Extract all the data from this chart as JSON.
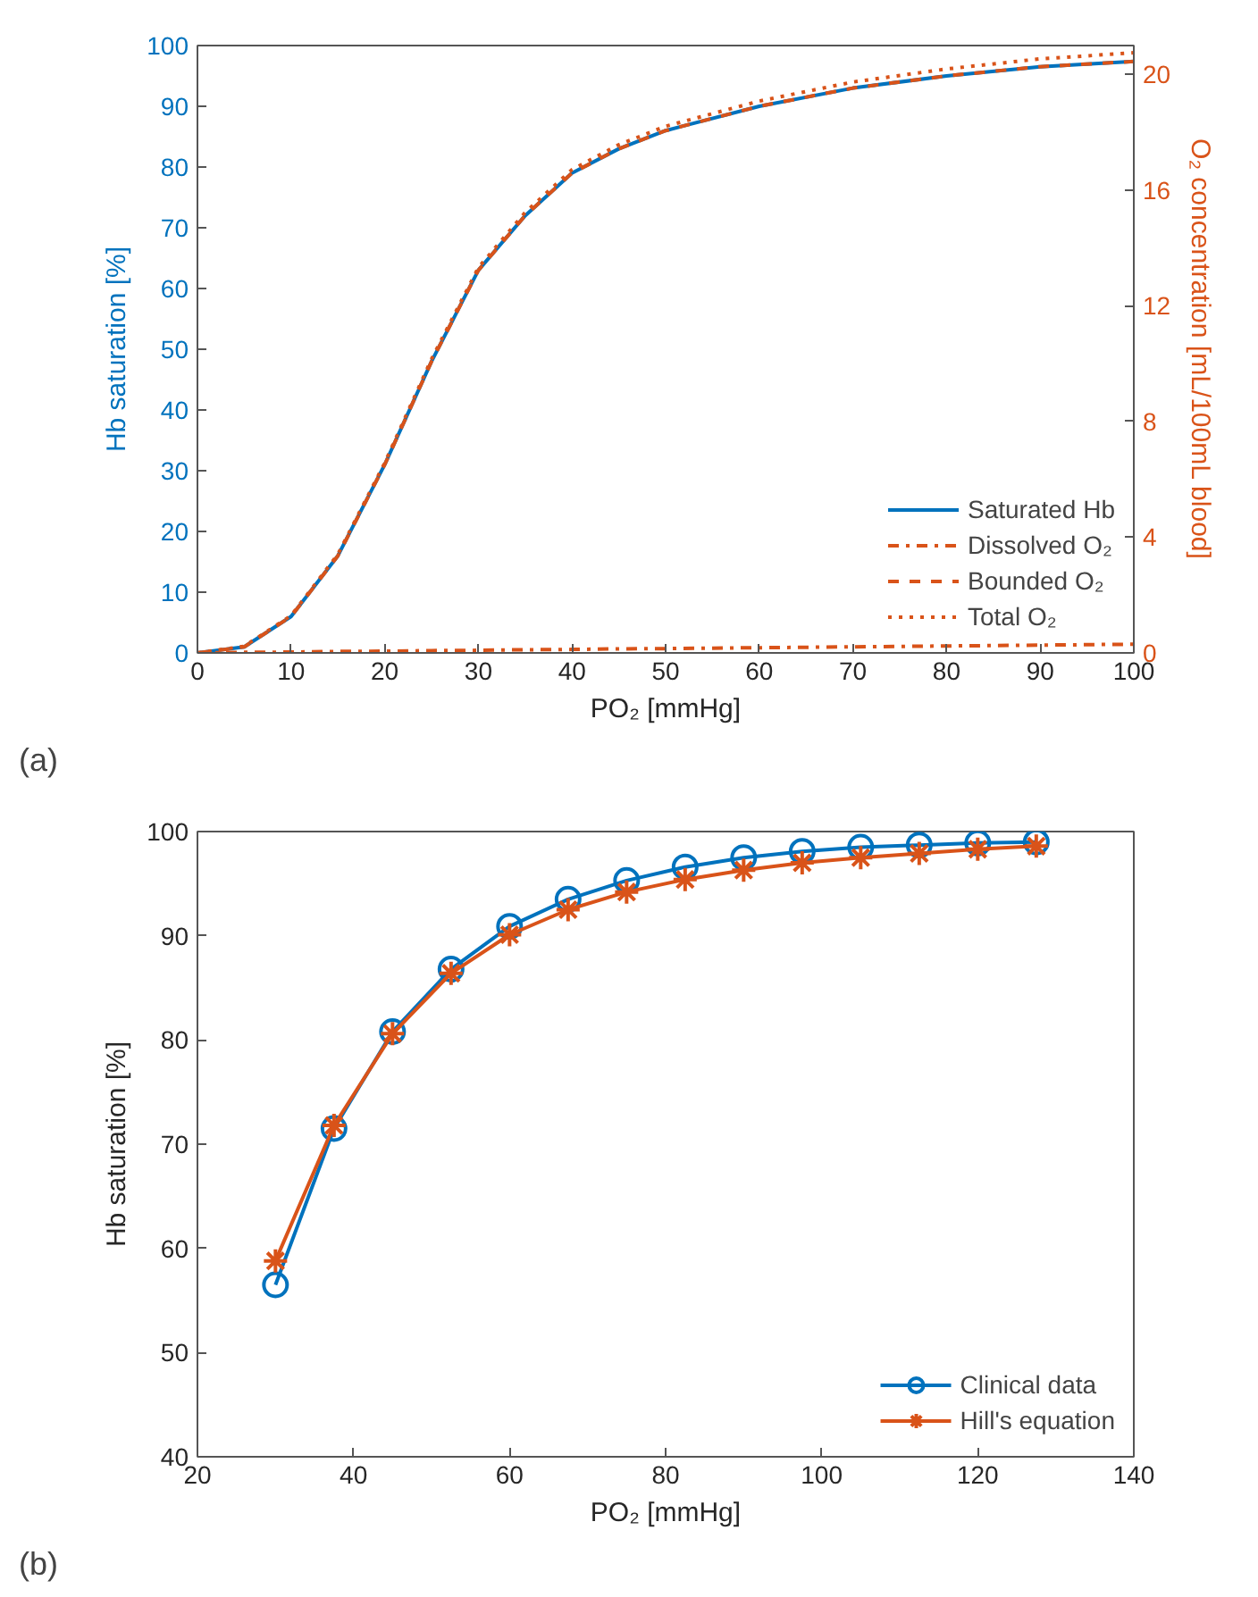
{
  "chart_data": [
    {
      "type": "line",
      "xlabel": "PO₂ [mmHg]",
      "ylabel": "Hb saturation [%]",
      "y2label": "O₂ concentration [mL/100mL blood]",
      "xlim": [
        0,
        100
      ],
      "xticks": [
        0,
        10,
        20,
        30,
        40,
        50,
        60,
        70,
        80,
        90,
        100
      ],
      "ylim": [
        0,
        100
      ],
      "yticks": [
        0,
        10,
        20,
        30,
        40,
        50,
        60,
        70,
        80,
        90,
        100
      ],
      "y2lim": [
        0,
        21
      ],
      "y2ticks": [
        0,
        4,
        8,
        12,
        16,
        20
      ],
      "legend": "bottom right",
      "grid": false,
      "annotations": [
        "(a)"
      ],
      "x": [
        0,
        5,
        10,
        15,
        20,
        25,
        30,
        35,
        40,
        45,
        50,
        60,
        70,
        80,
        90,
        100
      ],
      "series": [
        {
          "name": "Saturated Hb",
          "color": "#0072bd",
          "line_style": "solid",
          "values": [
            0,
            1,
            6,
            16,
            31,
            48,
            63,
            72,
            79,
            83,
            86,
            90,
            93,
            95,
            96.5,
            97.4
          ]
        },
        {
          "name": "Dissolved O₂",
          "color": "#d95319",
          "line_style": "dashdot",
          "axis": "y2",
          "values": [
            0,
            0.02,
            0.03,
            0.05,
            0.06,
            0.08,
            0.09,
            0.11,
            0.12,
            0.14,
            0.15,
            0.18,
            0.21,
            0.24,
            0.27,
            0.3
          ]
        },
        {
          "name": "Bounded O₂",
          "color": "#d95319",
          "line_style": "dashed",
          "axis": "y2",
          "values": [
            0,
            0.21,
            1.26,
            3.36,
            6.51,
            10.08,
            13.23,
            15.12,
            16.59,
            17.43,
            18.06,
            18.9,
            19.53,
            19.95,
            20.27,
            20.45
          ]
        },
        {
          "name": "Total O₂",
          "color": "#d95319",
          "line_style": "dotted",
          "axis": "y2",
          "values": [
            0,
            0.23,
            1.29,
            3.41,
            6.57,
            10.16,
            13.32,
            15.23,
            16.71,
            17.57,
            18.21,
            19.08,
            19.74,
            20.19,
            20.54,
            20.75
          ]
        }
      ]
    },
    {
      "type": "line",
      "xlabel": "PO₂ [mmHg]",
      "ylabel": "Hb saturation [%]",
      "xlim": [
        20,
        140
      ],
      "xticks": [
        20,
        40,
        60,
        80,
        100,
        120,
        140
      ],
      "ylim": [
        40,
        100
      ],
      "yticks": [
        40,
        50,
        60,
        70,
        80,
        90,
        100
      ],
      "legend": "bottom right",
      "grid": false,
      "annotations": [
        "(b)"
      ],
      "x": [
        30,
        37.5,
        45,
        52.5,
        60,
        67.5,
        75,
        82.5,
        90,
        97.5,
        105,
        112.5,
        120,
        127.5
      ],
      "series": [
        {
          "name": "Clinical data",
          "color": "#0072bd",
          "marker": "circle",
          "line_style": "solid",
          "values": [
            56.5,
            71.5,
            80.8,
            86.8,
            90.9,
            93.5,
            95.3,
            96.6,
            97.5,
            98.1,
            98.5,
            98.7,
            98.9,
            99.0
          ]
        },
        {
          "name": "Hill's equation",
          "color": "#d95319",
          "marker": "cross",
          "line_style": "solid",
          "values": [
            58.8,
            71.8,
            80.6,
            86.4,
            90.1,
            92.5,
            94.2,
            95.4,
            96.3,
            97.0,
            97.5,
            97.9,
            98.3,
            98.6
          ]
        }
      ]
    }
  ]
}
